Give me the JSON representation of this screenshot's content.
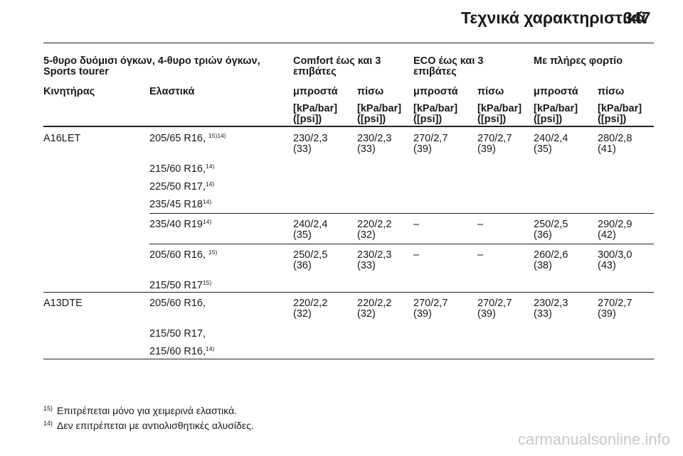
{
  "header": {
    "title": "Τεχνικά χαρακτηριστικά",
    "page": "347"
  },
  "table": {
    "group_headers": {
      "model": [
        "5-θυρο δυόμισι όγκων, 4-θυρο τριών όγκων,",
        "Sports tourer"
      ],
      "comfort": [
        "Comfort έως και 3",
        "επιβάτες"
      ],
      "eco": [
        "ECO έως και 3",
        "επιβάτες"
      ],
      "full": "Με πλήρες φορτίο"
    },
    "columns": [
      "Κινητήρας",
      "Ελαστικά",
      "μπροστά",
      "πίσω",
      "μπροστά",
      "πίσω",
      "μπροστά",
      "πίσω"
    ],
    "unit": [
      "[kPa/bar]",
      "([psi])"
    ],
    "engines": [
      "A16LET",
      "A13DTE"
    ],
    "tyres": [
      {
        "size": "205/65 R16,",
        "note": "15)14)"
      },
      {
        "size": "215/60 R16,",
        "note": "14)"
      },
      {
        "size": "225/50 R17,",
        "note": "14)"
      },
      {
        "size": "235/45 R18",
        "note": "14)"
      },
      {
        "size": "235/40 R19",
        "note": "14)"
      },
      {
        "size": "205/60 R16,",
        "note": "15)"
      },
      {
        "size": "215/50 R17",
        "note": "15)"
      },
      {
        "size": "205/60 R16,",
        "note": ""
      },
      {
        "size": "215/50 R17,",
        "note": ""
      },
      {
        "size": "215/60 R16,",
        "note": "14)"
      }
    ],
    "values": [
      [
        [
          "230/2,3",
          "(33)"
        ],
        [
          "230/2,3",
          "(33)"
        ],
        [
          "270/2,7",
          "(39)"
        ],
        [
          "270/2,7",
          "(39)"
        ],
        [
          "240/2,4",
          "(35)"
        ],
        [
          "280/2,8",
          "(41)"
        ]
      ],
      [
        [
          "240/2,4",
          "(35)"
        ],
        [
          "220/2,2",
          "(32)"
        ],
        [
          "–",
          ""
        ],
        [
          "–",
          ""
        ],
        [
          "250/2,5",
          "(36)"
        ],
        [
          "290/2,9",
          "(42)"
        ]
      ],
      [
        [
          "250/2,5",
          "(36)"
        ],
        [
          "230/2,3",
          "(33)"
        ],
        [
          "–",
          ""
        ],
        [
          "–",
          ""
        ],
        [
          "260/2,6",
          "(38)"
        ],
        [
          "300/3,0",
          "(43)"
        ]
      ],
      [
        [
          "220/2,2",
          "(32)"
        ],
        [
          "220/2,2",
          "(32)"
        ],
        [
          "270/2,7",
          "(39)"
        ],
        [
          "270/2,7",
          "(39)"
        ],
        [
          "230/2,3",
          "(33)"
        ],
        [
          "270/2,7",
          "(39)"
        ]
      ]
    ]
  },
  "footnotes": [
    {
      "num": "15)",
      "text": "Επιτρέπεται μόνο για χειμερινά ελαστικά."
    },
    {
      "num": "14)",
      "text": "Δεν επιτρέπεται με αντιολισθητικές αλυσίδες."
    }
  ],
  "watermark": "carmanualsonline.info"
}
